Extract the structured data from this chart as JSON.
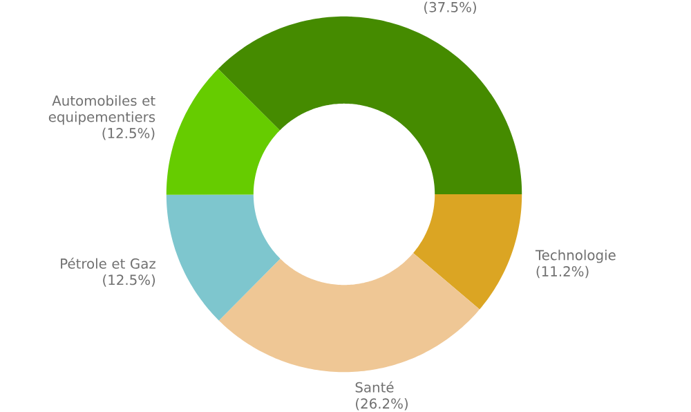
{
  "chart_data": {
    "type": "donut",
    "categories": [
      "Technologie",
      "Santé",
      "Pétrole et Gaz",
      "Automobiles et equipementiers",
      null
    ],
    "values": [
      11.2,
      26.2,
      12.5,
      12.5,
      37.5
    ],
    "value_labels": [
      "(11.2%)",
      "(26.2%)",
      "(12.5%)",
      "(12.5%)",
      "(37.5%)"
    ],
    "colors": [
      "#dba523",
      "#efc795",
      "#7ec6ce",
      "#66cc00",
      "#458b00"
    ]
  }
}
